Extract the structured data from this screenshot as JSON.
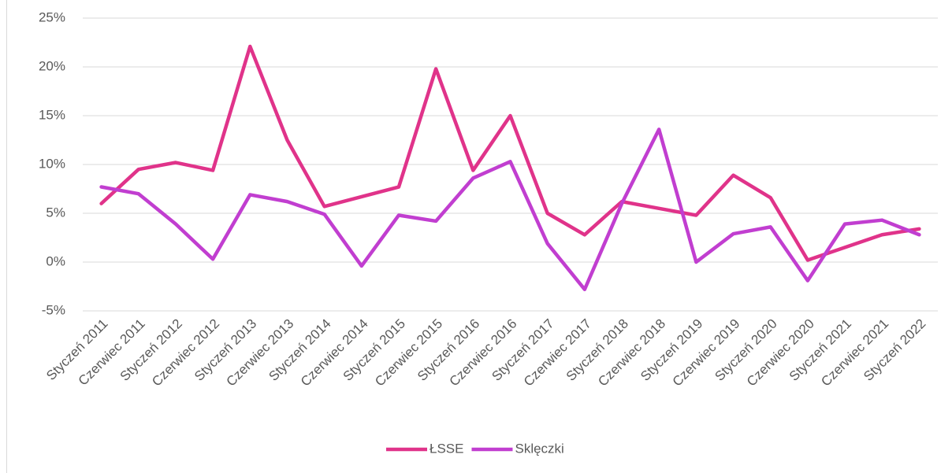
{
  "chart_data": {
    "type": "line",
    "categories": [
      "Styczeń 2011",
      "Czerwiec 2011",
      "Styczeń 2012",
      "Czerwiec 2012",
      "Styczeń 2013",
      "Czerwiec 2013",
      "Styczeń 2014",
      "Czerwiec 2014",
      "Styczeń 2015",
      "Czerwiec 2015",
      "Styczeń 2016",
      "Czerwiec 2016",
      "Styczeń 2017",
      "Czerwiec 2017",
      "Styczeń 2018",
      "Czerwiec 2018",
      "Styczeń 2019",
      "Czerwiec 2019",
      "Styczeń 2020",
      "Czerwiec 2020",
      "Styczeń 2021",
      "Czerwiec 2021",
      "Styczeń 2022"
    ],
    "series": [
      {
        "name": "ŁSSE",
        "color": "#e0338a",
        "values": [
          6.0,
          9.5,
          10.2,
          9.4,
          22.1,
          12.5,
          5.7,
          6.7,
          7.7,
          19.8,
          9.4,
          15.0,
          5.0,
          2.8,
          6.2,
          5.5,
          4.8,
          8.9,
          6.6,
          0.2,
          1.5,
          2.8,
          3.4
        ]
      },
      {
        "name": "Sklęczki",
        "color": "#c13ed0",
        "values": [
          7.7,
          7.0,
          3.9,
          0.3,
          6.9,
          6.2,
          4.9,
          -0.4,
          4.8,
          4.2,
          8.6,
          10.3,
          1.9,
          -2.8,
          6.0,
          13.6,
          0.0,
          2.9,
          3.6,
          -1.9,
          3.9,
          4.3,
          2.8
        ]
      }
    ],
    "ylim": [
      -5,
      25
    ],
    "yticks": [
      {
        "value": -5,
        "label": "-5%"
      },
      {
        "value": 0,
        "label": "0%"
      },
      {
        "value": 5,
        "label": "5%"
      },
      {
        "value": 10,
        "label": "10%"
      },
      {
        "value": 15,
        "label": "15%"
      },
      {
        "value": 20,
        "label": "20%"
      },
      {
        "value": 25,
        "label": "25%"
      }
    ],
    "grid": true,
    "legend": "bottom"
  }
}
